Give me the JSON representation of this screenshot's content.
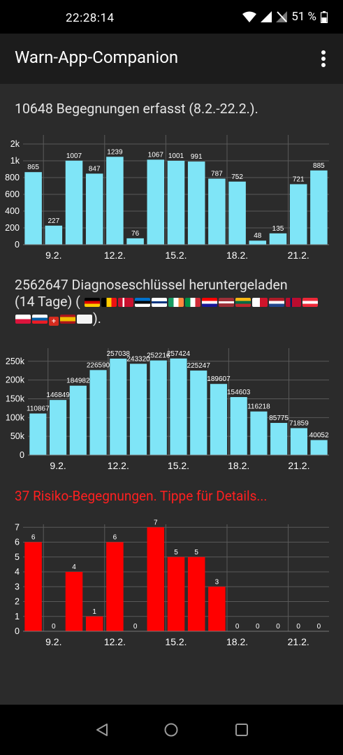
{
  "status_bar": {
    "time": "22:28:14",
    "battery": "51 %"
  },
  "app_bar": {
    "title": "Warn-App-Companion"
  },
  "section1": {
    "heading": "10648 Begegnungen erfasst (8.2.-22.2.)."
  },
  "section2": {
    "heading_line1": "2562647 Diagnoseschlüssel heruntergeladen",
    "heading_line2_prefix": "(14 Tage) (",
    "heading_line3_suffix": ")."
  },
  "section3": {
    "heading": "37 Risiko-Begegnungen. Tippe für Details..."
  },
  "colors": {
    "cyan_bar": "#7fe5f7",
    "red_bar": "#ff0000",
    "background": "#2b2b2b"
  },
  "chart_data": [
    {
      "type": "bar",
      "title": "10648 Begegnungen erfasst (8.2.-22.2.).",
      "x_tick_labels": [
        "9.2.",
        "12.2.",
        "15.2.",
        "18.2.",
        "21.2."
      ],
      "values": [
        865,
        227,
        1007,
        847,
        1239,
        76,
        1067,
        1001,
        991,
        787,
        752,
        48,
        135,
        721,
        885
      ],
      "y_tick_labels": [
        "0",
        "200",
        "400",
        "600",
        "800",
        "1k",
        "2k"
      ],
      "grid": true
    },
    {
      "type": "bar",
      "title": "2562647 Diagnoseschlüssel heruntergeladen (14 Tage)",
      "x_tick_labels": [
        "9.2.",
        "12.2.",
        "15.2.",
        "18.2.",
        "21.2."
      ],
      "values": [
        110867,
        146849,
        184982,
        226590,
        257038,
        243320,
        252216,
        257424,
        225247,
        189607,
        154603,
        116218,
        85775,
        71859,
        40052
      ],
      "y_tick_labels": [
        "0",
        "50k",
        "100k",
        "150k",
        "200k",
        "250k"
      ],
      "ylim": [
        0,
        285000
      ],
      "grid": true
    },
    {
      "type": "bar",
      "title": "37 Risiko-Begegnungen. Tippe für Details...",
      "x_tick_labels": [
        "9.2.",
        "12.2.",
        "15.2.",
        "18.2.",
        "21.2."
      ],
      "values": [
        6,
        0,
        4,
        1,
        6,
        0,
        7,
        5,
        5,
        3,
        0,
        0,
        0,
        0,
        0
      ],
      "y_tick_labels": [
        "0",
        "1",
        "2",
        "3",
        "4",
        "5",
        "6",
        "7"
      ],
      "ylim": [
        0,
        7.2
      ],
      "grid": true
    }
  ]
}
